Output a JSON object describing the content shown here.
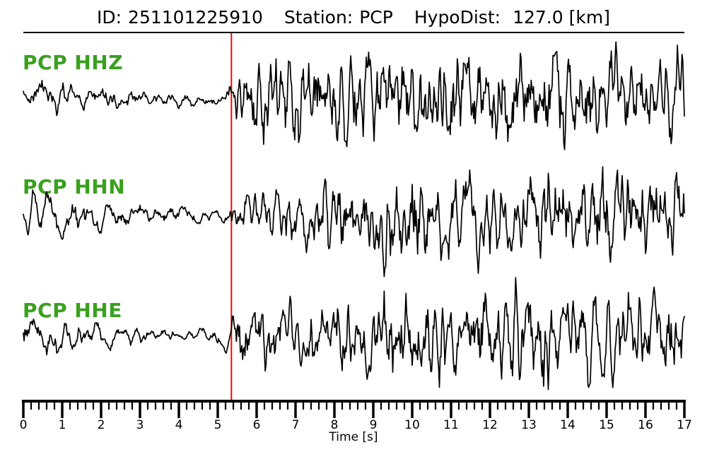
{
  "header": {
    "id_label": "ID:",
    "id_value": "251101225910",
    "station_label": "Station:",
    "station_value": "PCP",
    "hypodist_label": "HypoDist:",
    "hypodist_value": "127.0",
    "hypodist_unit": "[km]"
  },
  "chart_data": {
    "type": "line",
    "subtype": "three-component-seismogram",
    "title": "ID: 251101225910  Station: PCP  HypoDist: 127.0 [km]",
    "event_id": "251101225910",
    "station": "PCP",
    "hypodist_km": 127.0,
    "xlabel": "Time [s]",
    "xlim": [
      0,
      17
    ],
    "x_major_ticks": [
      0,
      1,
      2,
      3,
      4,
      5,
      6,
      7,
      8,
      9,
      10,
      11,
      12,
      13,
      14,
      15,
      16,
      17
    ],
    "x_minor_step": 0.2,
    "grid": "off",
    "y_axis": "hidden (normalized amplitude, one row per component)",
    "pick_line": {
      "time_s": 5.35,
      "color": "#ff0000"
    },
    "trace_color": "#000000",
    "label_color": "#3aa01e",
    "axis_color": "#000000",
    "sample_rate_hz": 50,
    "traces": [
      {
        "label": "PCP HHZ",
        "envelope": [
          [
            0,
            0.28
          ],
          [
            0.9,
            0.31
          ],
          [
            1.7,
            0.29
          ],
          [
            2.5,
            0.22
          ],
          [
            3.3,
            0.17
          ],
          [
            4.3,
            0.15
          ],
          [
            5.2,
            0.13
          ],
          [
            5.45,
            0.5
          ],
          [
            5.9,
            0.68
          ],
          [
            6.5,
            1.0
          ],
          [
            7.3,
            0.92
          ],
          [
            8.2,
            1.0
          ],
          [
            9.2,
            0.88
          ],
          [
            10.2,
            0.95
          ],
          [
            11.2,
            0.82
          ],
          [
            12.2,
            0.95
          ],
          [
            13.2,
            0.88
          ],
          [
            14.2,
            0.84
          ],
          [
            15.2,
            0.9
          ],
          [
            16.1,
            0.84
          ],
          [
            17,
            0.9
          ]
        ],
        "synthesis": {
          "seed": 42,
          "pre_smooth": 8,
          "post_smooth": 4
        }
      },
      {
        "label": "PCP HHN",
        "envelope": [
          [
            0,
            0.44
          ],
          [
            0.7,
            0.5
          ],
          [
            1.4,
            0.44
          ],
          [
            2.1,
            0.3
          ],
          [
            2.8,
            0.24
          ],
          [
            3.6,
            0.19
          ],
          [
            4.4,
            0.16
          ],
          [
            5.2,
            0.15
          ],
          [
            5.6,
            0.32
          ],
          [
            6.3,
            0.48
          ],
          [
            7.1,
            0.62
          ],
          [
            7.9,
            0.78
          ],
          [
            8.7,
            0.85
          ],
          [
            9.5,
            0.95
          ],
          [
            10.3,
            1.0
          ],
          [
            11.0,
            0.88
          ],
          [
            11.8,
            0.8
          ],
          [
            12.6,
            0.85
          ],
          [
            13.4,
            0.9
          ],
          [
            14.2,
            0.84
          ],
          [
            15.1,
            0.9
          ],
          [
            16.0,
            0.8
          ],
          [
            17,
            0.76
          ]
        ],
        "synthesis": {
          "seed": 1337,
          "pre_smooth": 8,
          "post_smooth": 4
        }
      },
      {
        "label": "PCP HHE",
        "envelope": [
          [
            0,
            0.4
          ],
          [
            0.8,
            0.43
          ],
          [
            1.6,
            0.33
          ],
          [
            2.3,
            0.22
          ],
          [
            3.1,
            0.18
          ],
          [
            3.9,
            0.16
          ],
          [
            4.7,
            0.17
          ],
          [
            5.25,
            0.19
          ],
          [
            5.5,
            0.72
          ],
          [
            5.95,
            0.6
          ],
          [
            6.7,
            0.66
          ],
          [
            7.5,
            0.74
          ],
          [
            8.3,
            0.8
          ],
          [
            9.1,
            0.9
          ],
          [
            9.9,
            1.0
          ],
          [
            10.7,
            0.84
          ],
          [
            11.5,
            0.8
          ],
          [
            12.3,
            0.86
          ],
          [
            12.9,
            1.0
          ],
          [
            13.7,
            0.8
          ],
          [
            14.6,
            0.74
          ],
          [
            15.4,
            0.8
          ],
          [
            16.2,
            0.86
          ],
          [
            17,
            0.8
          ]
        ],
        "synthesis": {
          "seed": 2025,
          "pre_smooth": 8,
          "post_smooth": 4
        }
      }
    ]
  }
}
